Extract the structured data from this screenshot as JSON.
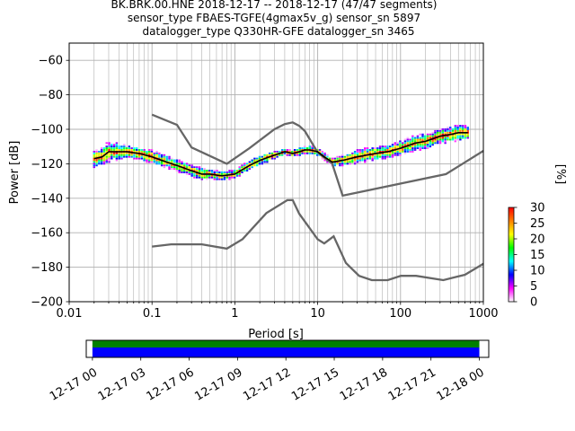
{
  "title": {
    "line1": "BK.BRK.00.HNE   2018-12-17 -- 2018-12-17  (47/47 segments)",
    "line2": "sensor_type FBAES-TGFE(4gmax5v_g) sensor_sn 5897",
    "line3": "datalogger_type Q330HR-GFE datalogger_sn 3465"
  },
  "colors": {
    "noise_model": "#666666",
    "mean_line": "#000000",
    "grid": "#b0b0b0",
    "coverage_data": "#008000",
    "coverage_gaps": "#0000ff"
  },
  "chart_data": [
    {
      "type": "heatmap",
      "title": "",
      "xlabel": "Period [s]",
      "ylabel": "Power [dB]",
      "xscale": "log",
      "xlim": [
        0.01,
        1000
      ],
      "ylim": [
        -200,
        -50
      ],
      "x_ticks": [
        0.01,
        0.1,
        1,
        10,
        100,
        1000
      ],
      "x_tick_labels": [
        "0.01",
        "0.1",
        "1",
        "10",
        "100",
        "1000"
      ],
      "y_ticks": [
        -60,
        -80,
        -100,
        -120,
        -140,
        -160,
        -180,
        -200
      ],
      "y_tick_labels": [
        "−60",
        "−80",
        "−100",
        "−120",
        "−140",
        "−160",
        "−180",
        "−200"
      ],
      "grid": true,
      "colorbar": {
        "label": "[%]",
        "range": [
          0,
          30
        ],
        "ticks": [
          0,
          5,
          10,
          15,
          20,
          25,
          30
        ],
        "colormap": [
          "#ffffff",
          "#ff00ff",
          "#0000ff",
          "#00ffff",
          "#00ff00",
          "#ffff00",
          "#ff8000",
          "#ff0000"
        ]
      },
      "mean_psd": {
        "period": [
          0.02,
          0.025,
          0.03,
          0.04,
          0.05,
          0.07,
          0.1,
          0.15,
          0.2,
          0.3,
          0.4,
          0.5,
          0.7,
          1.0,
          1.5,
          2.0,
          3.0,
          4.0,
          5.0,
          6.0,
          7.0,
          8.0,
          10.0,
          12.0,
          15.0,
          20.0,
          30.0,
          50.0,
          70.0,
          100.0,
          150.0,
          200.0,
          300.0,
          400.0,
          500.0,
          650.0
        ],
        "power": [
          -117,
          -116,
          -113,
          -113,
          -113,
          -114,
          -116,
          -119,
          -121,
          -124,
          -126,
          -126,
          -127,
          -126,
          -121,
          -118,
          -115,
          -113,
          -114,
          -113,
          -112,
          -112,
          -113,
          -116,
          -119,
          -118,
          -116,
          -114,
          -113,
          -111,
          -108,
          -107,
          -104,
          -103,
          -102,
          -102
        ]
      },
      "psd_spread": {
        "period": [
          0.02,
          0.03,
          0.05,
          0.1,
          0.2,
          0.4,
          0.7,
          1.0,
          2.0,
          4.0,
          8.0,
          15.0,
          30.0,
          70.0,
          150.0,
          300.0,
          650.0
        ],
        "upper": [
          -113,
          -108,
          -110,
          -112,
          -118,
          -121,
          -124,
          -124,
          -116,
          -111,
          -110,
          -116,
          -111,
          -108,
          -104,
          -100,
          -97
        ],
        "lower": [
          -123,
          -120,
          -117,
          -120,
          -125,
          -128,
          -129,
          -129,
          -122,
          -115,
          -115,
          -121,
          -119,
          -116,
          -113,
          -109,
          -106
        ]
      },
      "noise_models": [
        {
          "period": [
            0.1,
            0.2,
            0.3,
            0.8,
            1.5,
            3.0,
            4.0,
            5.0,
            6.0,
            7.0,
            10.0,
            15.0,
            20.0,
            354.0,
            1000.0
          ],
          "power": [
            -91.5,
            -97.4,
            -110.5,
            -120.0,
            -111.0,
            -100.0,
            -97.0,
            -96.0,
            -98.0,
            -101.0,
            -113.5,
            -120.0,
            -138.5,
            -126.0,
            -112.5
          ]
        },
        {
          "period": [
            0.1,
            0.17,
            0.4,
            0.8,
            1.24,
            2.4,
            4.3,
            5.0,
            6.0,
            10.0,
            12.0,
            15.6,
            21.9,
            31.6,
            45.0,
            70.0,
            101.0,
            154.0,
            328.0,
            600.0,
            1000.0
          ],
          "power": [
            -168.0,
            -166.7,
            -166.7,
            -169.2,
            -163.7,
            -148.6,
            -141.1,
            -141.1,
            -149.0,
            -163.8,
            -166.2,
            -162.1,
            -177.5,
            -185.0,
            -187.5,
            -187.5,
            -185.0,
            -185.0,
            -187.5,
            -184.4,
            -178.0
          ]
        }
      ]
    },
    {
      "type": "bar",
      "title": "",
      "xlabel": "",
      "ylabel": "",
      "x_tick_labels": [
        "12-17 00",
        "12-17 03",
        "12-17 06",
        "12-17 09",
        "12-17 12",
        "12-17 15",
        "12-17 18",
        "12-17 21",
        "12-18 00"
      ],
      "xlim": [
        "2018-12-16 23:37",
        "2018-12-18 00:35"
      ],
      "series": [
        {
          "start": "2018-12-17 00:00",
          "end": "2018-12-18 00:00",
          "role": "data",
          "color": "#008000"
        },
        {
          "start": "2018-12-17 00:00",
          "end": "2018-12-18 00:00",
          "role": "gaps",
          "color": "#0000ff"
        }
      ]
    }
  ]
}
